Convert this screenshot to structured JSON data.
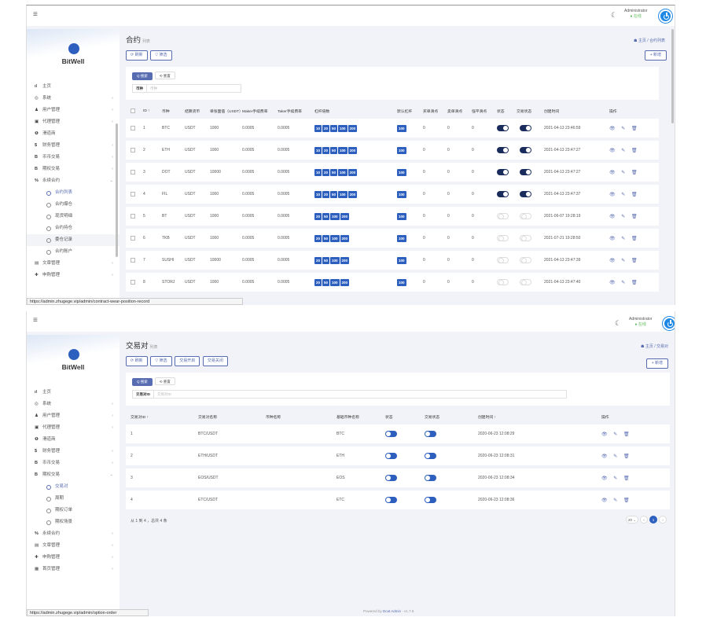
{
  "common": {
    "user": "Administrator",
    "online": "● 在线",
    "brand": "BitWell"
  },
  "screen1": {
    "menu": [
      {
        "icon": "ıl",
        "label": "主页",
        "chevron": ""
      },
      {
        "icon": "◎",
        "label": "系统",
        "chevron": "‹"
      },
      {
        "icon": "♟",
        "label": "用户管理",
        "chevron": "‹"
      },
      {
        "icon": "▣",
        "label": "代理管理",
        "chevron": "‹"
      },
      {
        "icon": "❶",
        "label": "滑道商",
        "chevron": ""
      },
      {
        "icon": "$",
        "label": "财务管理",
        "chevron": "‹"
      },
      {
        "icon": "B",
        "label": "币币交易",
        "chevron": "‹"
      },
      {
        "icon": "B",
        "label": "期权交易",
        "chevron": "‹"
      },
      {
        "icon": "%",
        "label": "永续合约",
        "chevron": "⌄"
      }
    ],
    "submenu": [
      "合约列表",
      "合约爆仓",
      "现货明细",
      "合约持仓",
      "委仓记录",
      "合约账户"
    ],
    "menu_after": [
      {
        "icon": "▤",
        "label": "文章管理",
        "chevron": "‹"
      },
      {
        "icon": "✚",
        "label": "申购管理",
        "chevron": "‹"
      }
    ],
    "title": "合约",
    "title_sub": "列表",
    "breadcrumb": "☗ 主页 / 合约列表",
    "btn_refresh": "⟳ 刷新",
    "btn_filter": "▽ 筛选",
    "btn_new": "+ 新增",
    "btn_search": "Q 搜索",
    "btn_reset": "⟲ 重置",
    "filter_label": "币种",
    "filter_placeholder": "币种",
    "headers": [
      "ID ↑",
      "币种",
      "结算货币",
      "单张面值（USDT）",
      "Maker手续费率",
      "Taker手续费率",
      "杠杆倍数",
      "默认杠杆",
      "买单滑点",
      "卖单滑点",
      "强平滑点",
      "状态",
      "交易状态",
      "创建时间",
      "操作"
    ],
    "rows": [
      {
        "id": "1",
        "coin": "BTC",
        "settle": "USDT",
        "face": "1000",
        "maker": "0.0005",
        "taker": "0.0005",
        "lev": [
          "10",
          "20",
          "50",
          "100",
          "200"
        ],
        "def": "100",
        "buy": "0",
        "sell": "0",
        "liq": "0",
        "status": 1,
        "trade": 1,
        "time": "2021-04-13 23:46:59"
      },
      {
        "id": "2",
        "coin": "ETH",
        "settle": "USDT",
        "face": "1000",
        "maker": "0.0005",
        "taker": "0.0005",
        "lev": [
          "10",
          "20",
          "50",
          "100",
          "200"
        ],
        "def": "100",
        "buy": "0",
        "sell": "0",
        "liq": "0",
        "status": 1,
        "trade": 1,
        "time": "2021-04-13 23:47:27"
      },
      {
        "id": "3",
        "coin": "DOT",
        "settle": "USDT",
        "face": "10000",
        "maker": "0.0005",
        "taker": "0.0005",
        "lev": [
          "10",
          "20",
          "50",
          "100",
          "200"
        ],
        "def": "100",
        "buy": "0",
        "sell": "0",
        "liq": "0",
        "status": 1,
        "trade": 1,
        "time": "2021-04-13 23:47:27"
      },
      {
        "id": "4",
        "coin": "FIL",
        "settle": "USDT",
        "face": "1000",
        "maker": "0.0005",
        "taker": "0.0005",
        "lev": [
          "10",
          "20",
          "50",
          "100",
          "200"
        ],
        "def": "100",
        "buy": "0",
        "sell": "0",
        "liq": "0",
        "status": 1,
        "trade": 1,
        "time": "2021-04-13 23:47:37"
      },
      {
        "id": "5",
        "coin": "BT",
        "settle": "USDT",
        "face": "1000",
        "maker": "0.0005",
        "taker": "0.0005",
        "lev": [
          "20",
          "50",
          "100",
          "200"
        ],
        "def": "100",
        "buy": "0",
        "sell": "0",
        "liq": "0",
        "status": 0,
        "trade": 0,
        "time": "2021-06-07 19:28:19"
      },
      {
        "id": "6",
        "coin": "TKB",
        "settle": "USDT",
        "face": "1000",
        "maker": "0.0005",
        "taker": "0.0005",
        "lev": [
          "20",
          "50",
          "100",
          "200"
        ],
        "def": "100",
        "buy": "0",
        "sell": "0",
        "liq": "0",
        "status": 0,
        "trade": 0,
        "time": "2021-07-21 19:28:50"
      },
      {
        "id": "7",
        "coin": "SUSHI",
        "settle": "USDT",
        "face": "10000",
        "maker": "0.0005",
        "taker": "0.0005",
        "lev": [
          "20",
          "50",
          "100",
          "200"
        ],
        "def": "100",
        "buy": "0",
        "sell": "0",
        "liq": "0",
        "status": 0,
        "trade": 0,
        "time": "2021-04-13 23:47:39"
      },
      {
        "id": "8",
        "coin": "STORJ",
        "settle": "USDT",
        "face": "1000",
        "maker": "0.0005",
        "taker": "0.0005",
        "lev": [
          "20",
          "50",
          "100",
          "200"
        ],
        "def": "100",
        "buy": "0",
        "sell": "0",
        "liq": "0",
        "status": 0,
        "trade": 0,
        "time": "2021-04-13 23:47:40"
      }
    ],
    "ops": "👁 ✎ 🗑",
    "url": "https://admin.zhugege.vip/admin/contract-wear-position-record"
  },
  "screen2": {
    "menu": [
      {
        "icon": "ıl",
        "label": "主页",
        "chevron": ""
      },
      {
        "icon": "◎",
        "label": "系统",
        "chevron": "‹"
      },
      {
        "icon": "♟",
        "label": "用户管理",
        "chevron": "‹"
      },
      {
        "icon": "▣",
        "label": "代理管理",
        "chevron": "‹"
      },
      {
        "icon": "❶",
        "label": "滑道商",
        "chevron": ""
      },
      {
        "icon": "$",
        "label": "财务管理",
        "chevron": "‹"
      },
      {
        "icon": "B",
        "label": "币币交易",
        "chevron": "‹"
      },
      {
        "icon": "B",
        "label": "期权交易",
        "chevron": "⌄"
      }
    ],
    "submenu": [
      "交易对",
      "周期",
      "期权订单",
      "期权场景"
    ],
    "menu_after": [
      {
        "icon": "%",
        "label": "永续合约",
        "chevron": "‹"
      },
      {
        "icon": "▤",
        "label": "文章管理",
        "chevron": "‹"
      },
      {
        "icon": "✚",
        "label": "申购管理",
        "chevron": "‹"
      },
      {
        "icon": "▦",
        "label": "首页管理",
        "chevron": "‹"
      }
    ],
    "title": "交易对",
    "title_sub": "列表",
    "breadcrumb": "☗ 主页 / 交易对",
    "btn_refresh": "⟳ 刷新",
    "btn_filter": "▽ 筛选",
    "btn_open": "交易开启",
    "btn_close": "交易关闭",
    "btn_new": "+ 新增",
    "btn_search": "Q 搜索",
    "btn_reset": "⟲ 重置",
    "filter_label": "交易对ID",
    "filter_placeholder": "交易对ID",
    "headers": [
      "交易对ID ↑",
      "交易对名称",
      "币种名称",
      "基础币种名称",
      "状态",
      "交易状态",
      "创建时间 ↑",
      "操作"
    ],
    "rows": [
      {
        "id": "1",
        "pair": "BTC/USDT",
        "coin": "",
        "base": "BTC",
        "time": "2020-06-23 12:08:29"
      },
      {
        "id": "2",
        "pair": "ETH/USDT",
        "coin": "",
        "base": "ETH",
        "time": "2020-06-23 12:08:31"
      },
      {
        "id": "3",
        "pair": "EOS/USDT",
        "coin": "",
        "base": "EOS",
        "time": "2020-06-23 12:08:34"
      },
      {
        "id": "4",
        "pair": "ETC/USDT",
        "coin": "",
        "base": "ETC",
        "time": "2020-06-23 12:08:36"
      }
    ],
    "ops": "👁 ✎ 🗑",
    "summary": "从 1 到 4 ，总共 4 条",
    "page_size": "20 ⌄",
    "prev": "‹",
    "page": "1",
    "next": "›",
    "powered": "Powered by",
    "powered_link": "Dcat Admin",
    "version": "· v1.7.8",
    "url": "https://admin.zhugege.vip/admin/option-order"
  }
}
